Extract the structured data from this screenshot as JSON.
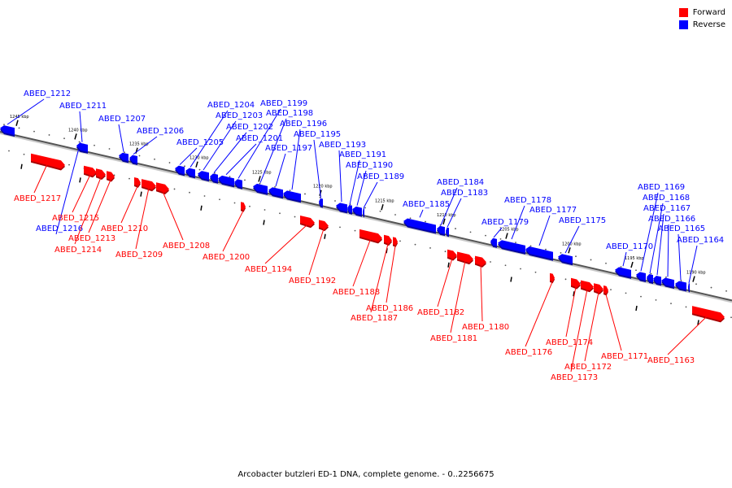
{
  "legend": {
    "forward_label": "Forward",
    "reverse_label": "Reverse",
    "forward_color": "#ff0000",
    "reverse_color": "#0000ff"
  },
  "caption": "Arcobacter butzleri ED-1 DNA, complete genome. - 0..2256675",
  "ticks": [
    "1245 kbp",
    "1240 kbp",
    "1235 kbp",
    "1230 kbp",
    "1225 kbp",
    "1220 kbp",
    "1215 kbp",
    "1210 kbp",
    "1205 kbp",
    "1200 kbp",
    "1195 kbp",
    "1190 kbp"
  ],
  "genes": [
    {
      "label": "ABED_1217",
      "strand": "forward"
    },
    {
      "label": "ABED_1216",
      "strand": "reverse"
    },
    {
      "label": "ABED_1215",
      "strand": "forward"
    },
    {
      "label": "ABED_1214",
      "strand": "forward"
    },
    {
      "label": "ABED_1213",
      "strand": "forward"
    },
    {
      "label": "ABED_1212",
      "strand": "reverse"
    },
    {
      "label": "ABED_1211",
      "strand": "reverse"
    },
    {
      "label": "ABED_1210",
      "strand": "forward"
    },
    {
      "label": "ABED_1209",
      "strand": "forward"
    },
    {
      "label": "ABED_1208",
      "strand": "forward"
    },
    {
      "label": "ABED_1207",
      "strand": "reverse"
    },
    {
      "label": "ABED_1206",
      "strand": "reverse"
    },
    {
      "label": "ABED_1205",
      "strand": "reverse"
    },
    {
      "label": "ABED_1204",
      "strand": "reverse"
    },
    {
      "label": "ABED_1203",
      "strand": "reverse"
    },
    {
      "label": "ABED_1202",
      "strand": "reverse"
    },
    {
      "label": "ABED_1201",
      "strand": "reverse"
    },
    {
      "label": "ABED_1200",
      "strand": "forward"
    },
    {
      "label": "ABED_1199",
      "strand": "reverse"
    },
    {
      "label": "ABED_1198",
      "strand": "reverse"
    },
    {
      "label": "ABED_1197",
      "strand": "reverse"
    },
    {
      "label": "ABED_1196",
      "strand": "reverse"
    },
    {
      "label": "ABED_1195",
      "strand": "reverse"
    },
    {
      "label": "ABED_1194",
      "strand": "forward"
    },
    {
      "label": "ABED_1193",
      "strand": "reverse"
    },
    {
      "label": "ABED_1192",
      "strand": "forward"
    },
    {
      "label": "ABED_1191",
      "strand": "reverse"
    },
    {
      "label": "ABED_1190",
      "strand": "reverse"
    },
    {
      "label": "ABED_1189",
      "strand": "reverse"
    },
    {
      "label": "ABED_1188",
      "strand": "forward"
    },
    {
      "label": "ABED_1187",
      "strand": "forward"
    },
    {
      "label": "ABED_1186",
      "strand": "forward"
    },
    {
      "label": "ABED_1185",
      "strand": "reverse"
    },
    {
      "label": "ABED_1184",
      "strand": "reverse"
    },
    {
      "label": "ABED_1183",
      "strand": "reverse"
    },
    {
      "label": "ABED_1182",
      "strand": "forward"
    },
    {
      "label": "ABED_1181",
      "strand": "forward"
    },
    {
      "label": "ABED_1180",
      "strand": "forward"
    },
    {
      "label": "ABED_1179",
      "strand": "reverse"
    },
    {
      "label": "ABED_1178",
      "strand": "reverse"
    },
    {
      "label": "ABED_1177",
      "strand": "reverse"
    },
    {
      "label": "ABED_1176",
      "strand": "forward"
    },
    {
      "label": "ABED_1175",
      "strand": "reverse"
    },
    {
      "label": "ABED_1174",
      "strand": "forward"
    },
    {
      "label": "ABED_1173",
      "strand": "forward"
    },
    {
      "label": "ABED_1172",
      "strand": "forward"
    },
    {
      "label": "ABED_1171",
      "strand": "forward"
    },
    {
      "label": "ABED_1170",
      "strand": "reverse"
    },
    {
      "label": "ABED_1169",
      "strand": "reverse"
    },
    {
      "label": "ABED_1168",
      "strand": "reverse"
    },
    {
      "label": "ABED_1167",
      "strand": "reverse"
    },
    {
      "label": "ABED_1166",
      "strand": "reverse"
    },
    {
      "label": "ABED_1165",
      "strand": "reverse"
    },
    {
      "label": "ABED_1164",
      "strand": "reverse"
    },
    {
      "label": "ABED_1163",
      "strand": "forward"
    }
  ]
}
